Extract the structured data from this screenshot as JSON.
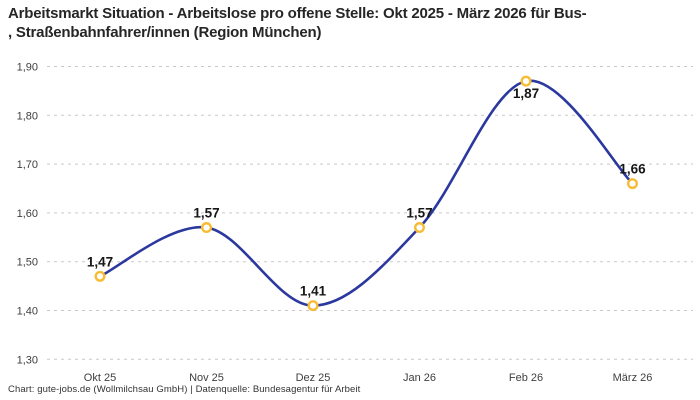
{
  "header": {
    "title_line1": "Arbeitsmarkt Situation - Arbeitslose pro offene Stelle: Okt 2025 - März 2026 für Bus-",
    "title_line2": ", Straßenbahnfahrer/innen (Region München)"
  },
  "footer": {
    "text": "Chart: gute-jobs.de (Wollmilchsau GmbH) | Datenquelle: Bundesagentur für Arbeit"
  },
  "chart_data": {
    "type": "line",
    "title": "Arbeitsmarkt Situation - Arbeitslose pro offene Stelle: Okt 2025 - März 2026 für Bus-, Straßenbahnfahrer/innen (Region München)",
    "categories": [
      "Okt 25",
      "Nov 25",
      "Dez 25",
      "Jan 26",
      "Feb 26",
      "März 26"
    ],
    "values": [
      1.47,
      1.57,
      1.41,
      1.57,
      1.87,
      1.66
    ],
    "value_labels": [
      "1,47",
      "1,57",
      "1,41",
      "1,57",
      "1,87",
      "1,66"
    ],
    "value_label_positions": [
      "above",
      "above",
      "above",
      "above",
      "below",
      "above"
    ],
    "xlabel": "",
    "ylabel": "",
    "ylim": [
      1.3,
      1.9
    ],
    "yticks": [
      1.9,
      1.8,
      1.7,
      1.6,
      1.5,
      1.4,
      1.3
    ],
    "ytick_labels": [
      "1,90",
      "1,80",
      "1,70",
      "1,60",
      "1,50",
      "1,40",
      "1,30"
    ],
    "grid": "horizontal-dashed",
    "legend": "none",
    "curve": "smooth",
    "colors": {
      "line": "#2B389E",
      "marker_ring": "#F7BC33",
      "marker_fill": "#FFFFFF",
      "gridline": "#C9C9C9",
      "tick_text": "#3F3F3F",
      "value_label_text": "#161616",
      "title_text": "#262626",
      "footer_text": "#333333",
      "background": "#FFFFFF"
    }
  }
}
